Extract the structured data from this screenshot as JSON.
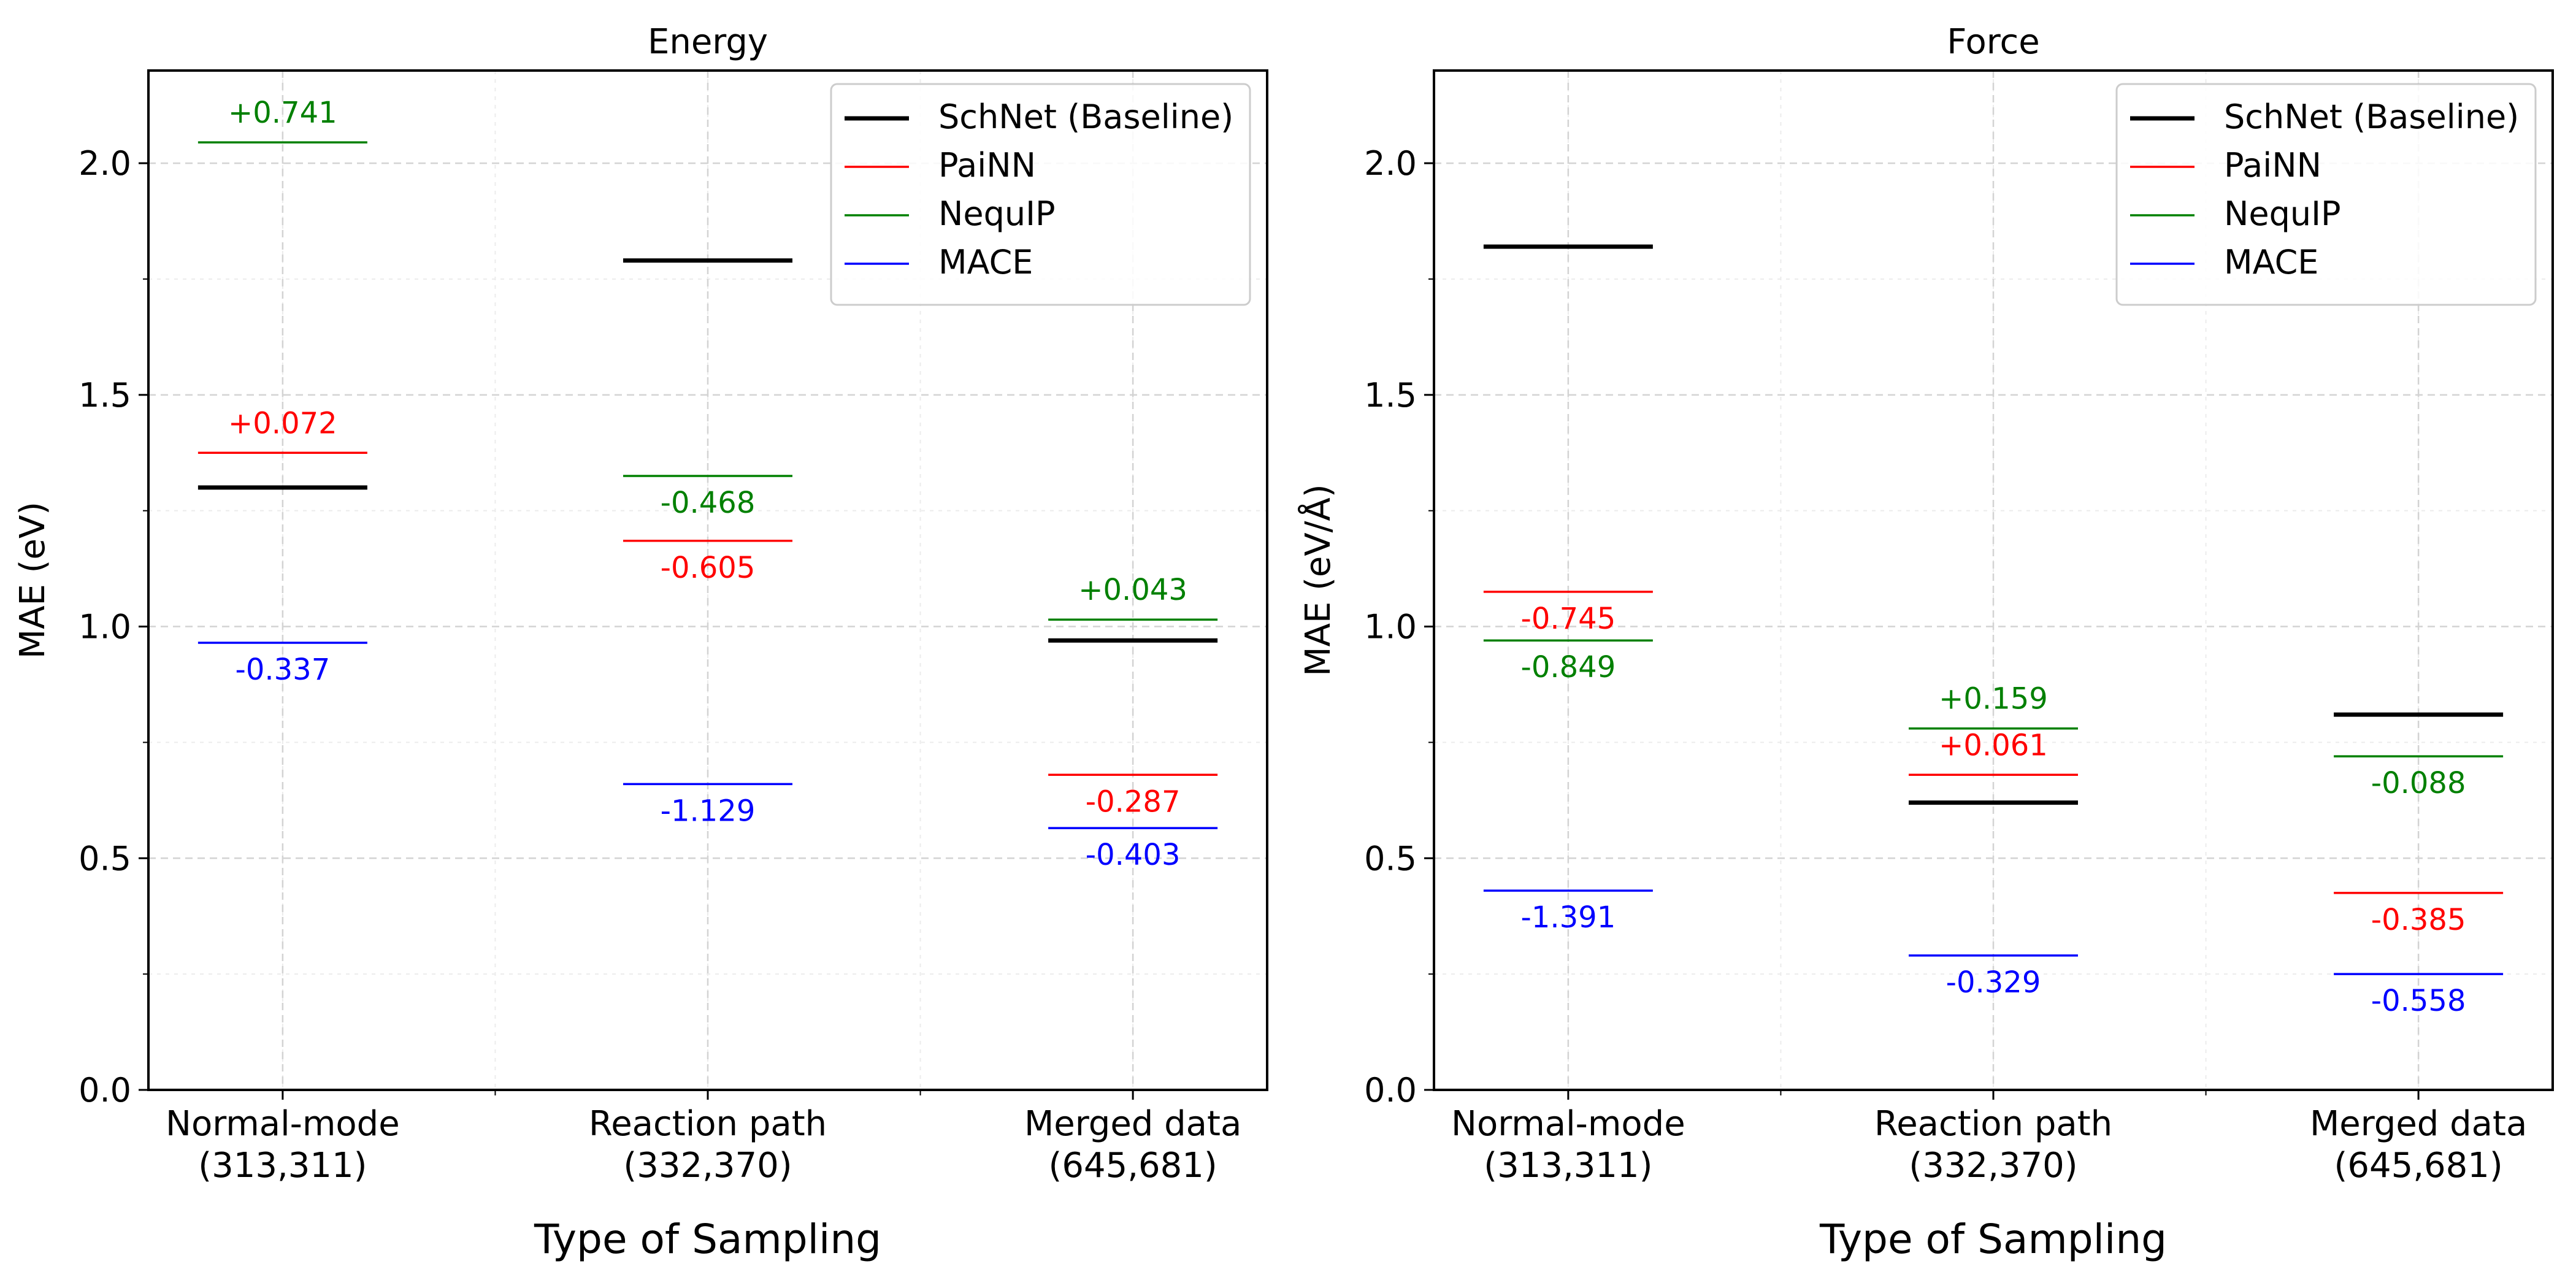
{
  "figure": {
    "xlabel": "Type of Sampling"
  },
  "colors": {
    "schnet": "#000000",
    "painn": "#ff0000",
    "nequip": "#008000",
    "mace": "#0000ff",
    "grid": "#d3d3d3"
  },
  "chart_data": [
    {
      "type": "line",
      "title": "Energy",
      "xlabel": "Type of Sampling",
      "ylabel": "MAE (eV)",
      "ylim": [
        0.0,
        2.2
      ],
      "yticks": [
        "0.0",
        "0.5",
        "1.0",
        "1.5",
        "2.0"
      ],
      "grid": true,
      "legend_position": "top-right",
      "categories": [
        [
          "Normal-mode",
          "(313,311)"
        ],
        [
          "Reaction path",
          "(332,370)"
        ],
        [
          "Merged data",
          "(645,681)"
        ]
      ],
      "series": [
        {
          "name": "SchNet (Baseline)",
          "key": "schnet",
          "values": [
            1.3,
            1.79,
            0.97
          ],
          "labels": [
            "",
            "",
            ""
          ]
        },
        {
          "name": "PaiNN",
          "key": "painn",
          "values": [
            1.375,
            1.185,
            0.68
          ],
          "labels": [
            "+0.072",
            "-0.605",
            "-0.287"
          ]
        },
        {
          "name": "NequIP",
          "key": "nequip",
          "values": [
            2.045,
            1.325,
            1.015
          ],
          "labels": [
            "+0.741",
            "-0.468",
            "+0.043"
          ]
        },
        {
          "name": "MACE",
          "key": "mace",
          "values": [
            0.965,
            0.66,
            0.565
          ],
          "labels": [
            "-0.337",
            "-1.129",
            "-0.403"
          ]
        }
      ]
    },
    {
      "type": "line",
      "title": "Force",
      "xlabel": "Type of Sampling",
      "ylabel": "MAE (eV/Å)",
      "ylim": [
        0.0,
        2.2
      ],
      "yticks": [
        "0.0",
        "0.5",
        "1.0",
        "1.5",
        "2.0"
      ],
      "grid": true,
      "legend_position": "top-right",
      "categories": [
        [
          "Normal-mode",
          "(313,311)"
        ],
        [
          "Reaction path",
          "(332,370)"
        ],
        [
          "Merged data",
          "(645,681)"
        ]
      ],
      "series": [
        {
          "name": "SchNet (Baseline)",
          "key": "schnet",
          "values": [
            1.82,
            0.62,
            0.81
          ],
          "labels": [
            "",
            "",
            ""
          ]
        },
        {
          "name": "PaiNN",
          "key": "painn",
          "values": [
            1.075,
            0.68,
            0.425
          ],
          "labels": [
            "-0.745",
            "+0.061",
            "-0.385"
          ]
        },
        {
          "name": "NequIP",
          "key": "nequip",
          "values": [
            0.97,
            0.78,
            0.72
          ],
          "labels": [
            "-0.849",
            "+0.159",
            "-0.088"
          ]
        },
        {
          "name": "MACE",
          "key": "mace",
          "values": [
            0.43,
            0.29,
            0.25
          ],
          "labels": [
            "-1.391",
            "-0.329",
            "-0.558"
          ]
        }
      ]
    }
  ]
}
